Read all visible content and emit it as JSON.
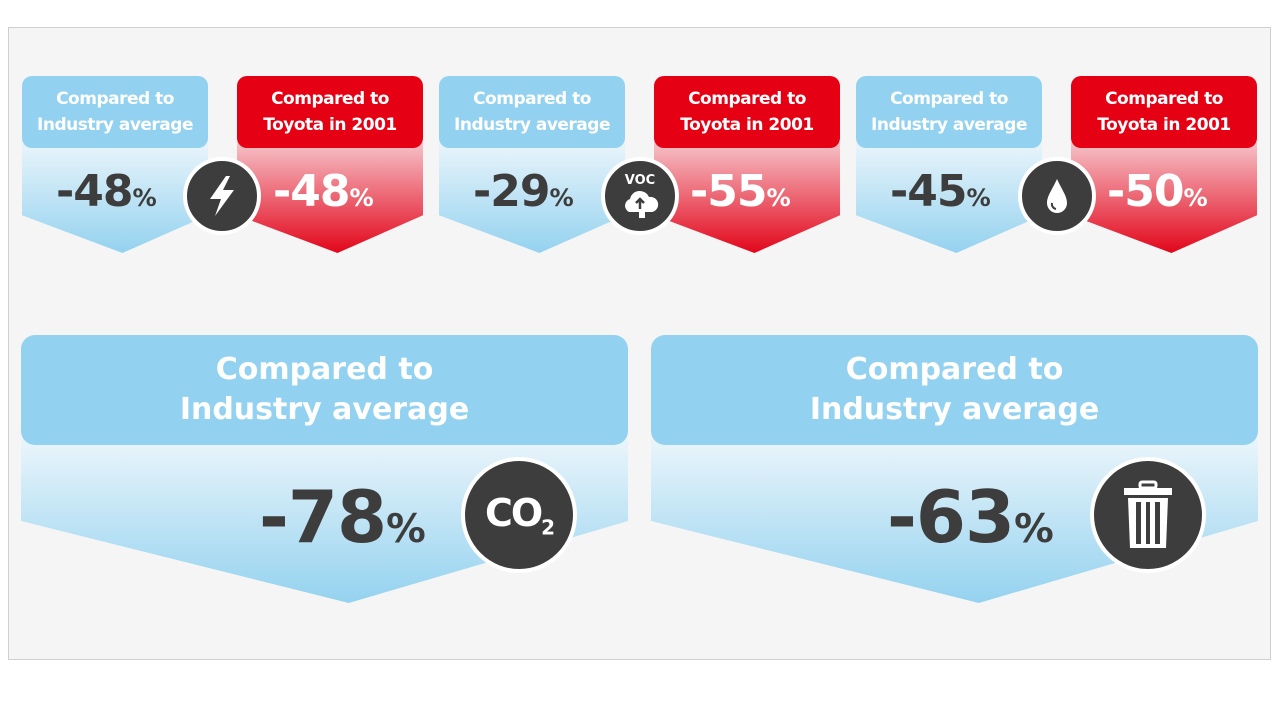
{
  "groups": [
    {
      "industry": {
        "label_1": "Compared to",
        "label_2": "Industry average",
        "value": "-48",
        "unit": "%"
      },
      "toyota": {
        "label_1": "Compared to",
        "label_2": "Toyota in 2001",
        "value": "-48",
        "unit": "%"
      },
      "icon": "lightning-icon"
    },
    {
      "industry": {
        "label_1": "Compared to",
        "label_2": "Industry average",
        "value": "-29",
        "unit": "%"
      },
      "toyota": {
        "label_1": "Compared to",
        "label_2": "Toyota in 2001",
        "value": "-55",
        "unit": "%"
      },
      "icon": "voc-cloud-icon",
      "icon_text": "VOC"
    },
    {
      "industry": {
        "label_1": "Compared to",
        "label_2": "Industry average",
        "value": "-45",
        "unit": "%"
      },
      "toyota": {
        "label_1": "Compared to",
        "label_2": "Toyota in 2001",
        "value": "-50",
        "unit": "%"
      },
      "icon": "water-drop-icon"
    }
  ],
  "big": [
    {
      "label_1": "Compared to",
      "label_2": "Industry average",
      "value": "-78",
      "unit": "%",
      "icon": "co2-icon",
      "icon_text": "CO",
      "icon_sub": "2"
    },
    {
      "label_1": "Compared to",
      "label_2": "Industry average",
      "value": "-63",
      "unit": "%",
      "icon": "trash-bin-icon"
    }
  ],
  "colors": {
    "blue": "#92d2f0",
    "red": "#e50013",
    "dark": "#3d3d3d",
    "background": "#f5f5f5"
  }
}
